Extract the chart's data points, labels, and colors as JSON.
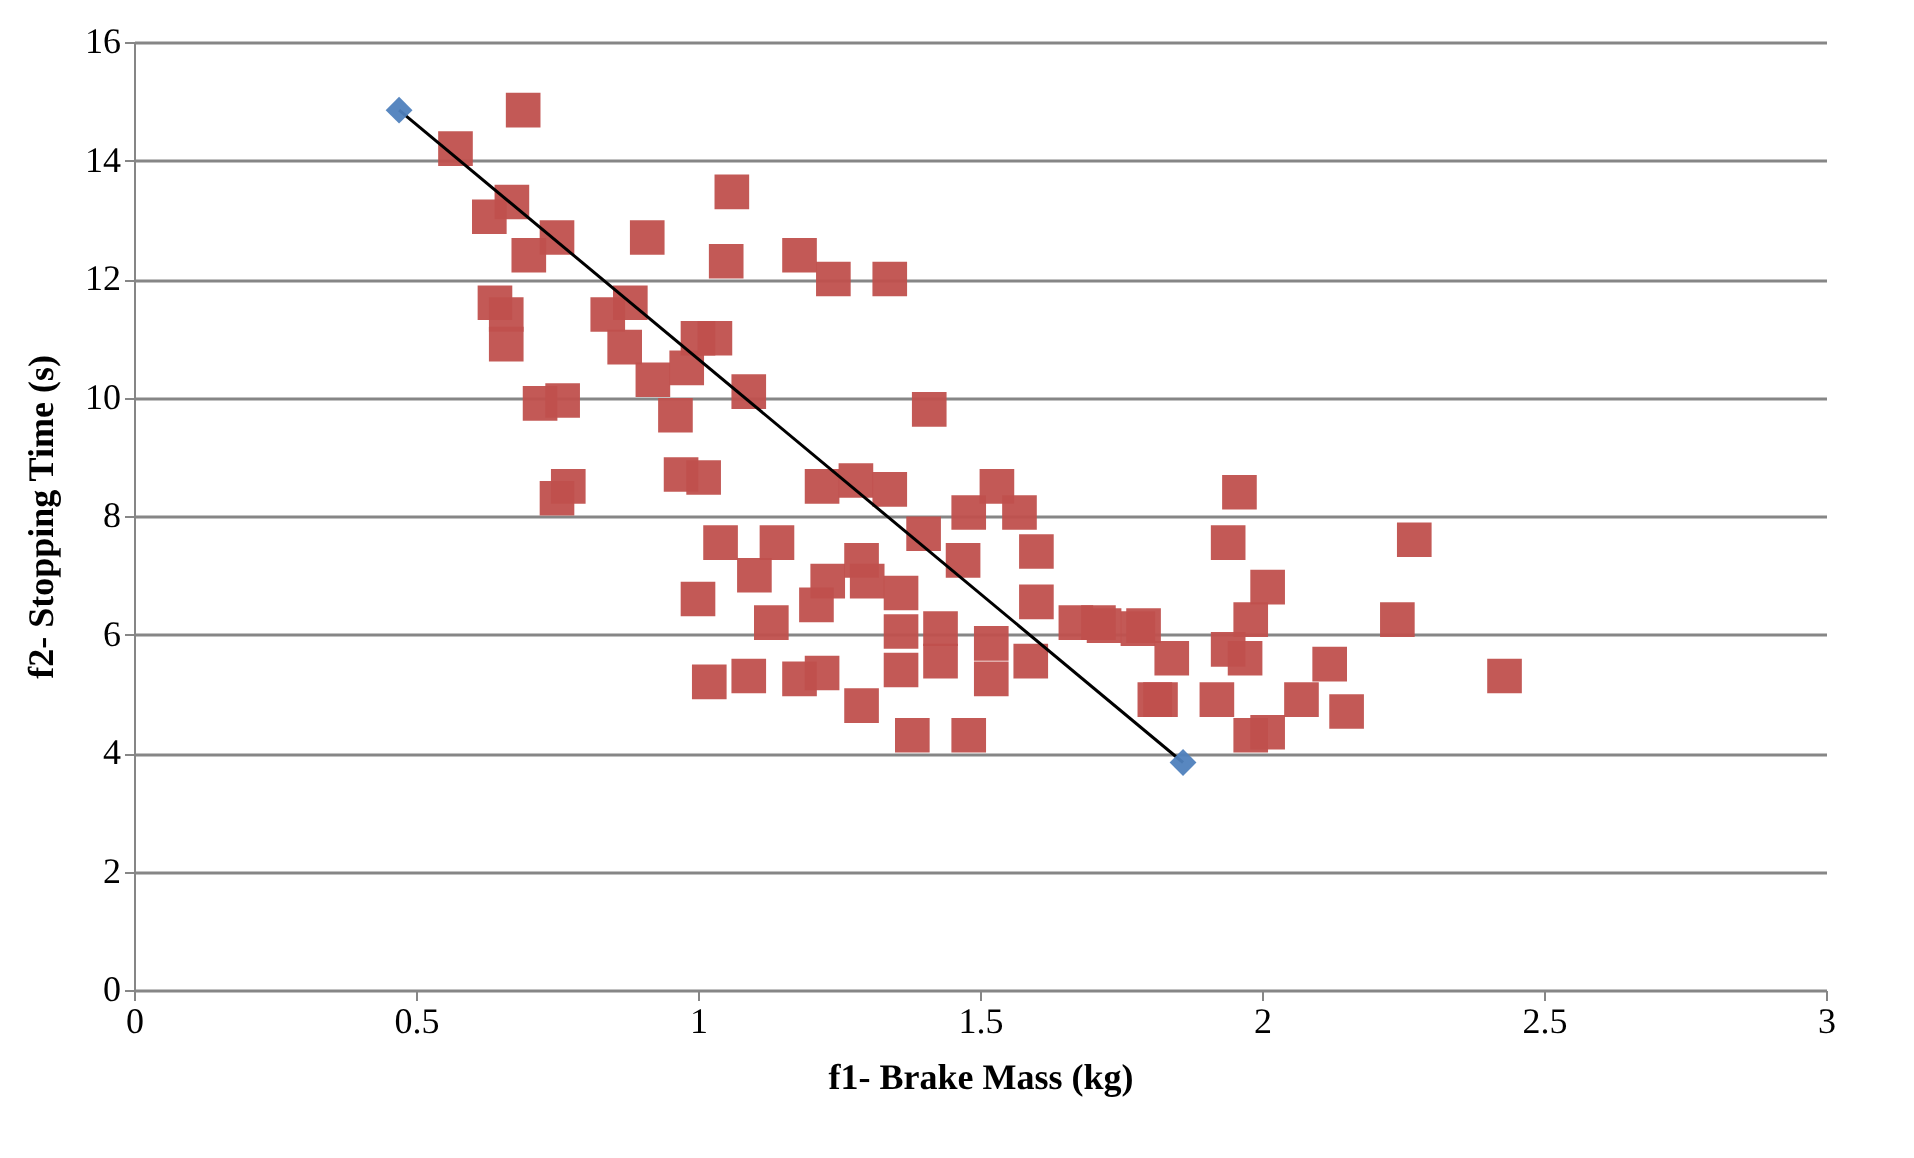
{
  "chart_data": {
    "type": "scatter",
    "xlabel": "f1- Brake Mass (kg)",
    "ylabel": "f2- Stopping Time (s)",
    "xlim": [
      0,
      3
    ],
    "xticks": [
      0,
      0.5,
      1,
      1.5,
      2,
      2.5,
      3
    ],
    "ylim": [
      0,
      16
    ],
    "yticks": [
      0,
      2,
      4,
      6,
      8,
      10,
      12,
      14,
      16
    ],
    "grid": "y",
    "legend": false,
    "series": [
      {
        "marker": "square",
        "color": "#c0504d",
        "x": [
          0.57,
          0.69,
          0.67,
          0.63,
          0.75,
          0.7,
          0.91,
          1.06,
          1.05,
          1.18,
          1.24,
          1.34,
          0.64,
          0.66,
          0.66,
          0.88,
          0.84,
          0.87,
          0.92,
          0.98,
          0.96,
          1.0,
          1.03,
          1.09,
          0.72,
          0.76,
          0.97,
          1.01,
          0.75,
          0.77,
          1.41,
          1.22,
          1.28,
          1.34,
          1.4,
          1.48,
          1.53,
          1.57,
          1.6,
          1.04,
          1.14,
          1.1,
          1.0,
          1.13,
          1.23,
          1.29,
          1.3,
          1.36,
          1.21,
          1.36,
          1.43,
          1.47,
          1.02,
          1.09,
          1.18,
          1.22,
          1.29,
          1.36,
          1.43,
          1.52,
          1.52,
          1.6,
          1.59,
          1.67,
          1.78,
          1.81,
          1.38,
          1.48,
          1.72,
          1.96,
          1.94,
          2.27,
          2.01,
          1.98,
          1.94,
          1.97,
          2.24,
          2.12,
          2.43,
          1.82,
          1.92,
          1.98,
          2.01,
          2.07,
          2.15,
          1.84,
          1.79,
          1.71
        ],
        "values": [
          14.2,
          14.85,
          13.3,
          13.05,
          12.7,
          12.4,
          12.7,
          13.47,
          12.3,
          12.4,
          12.0,
          12.0,
          11.6,
          11.4,
          10.9,
          11.6,
          11.4,
          10.85,
          10.3,
          10.5,
          9.7,
          11.0,
          11.0,
          10.1,
          9.9,
          9.95,
          8.7,
          8.65,
          8.3,
          8.5,
          9.8,
          8.5,
          8.6,
          8.45,
          7.7,
          8.06,
          8.5,
          8.06,
          7.4,
          7.55,
          7.55,
          7.0,
          6.6,
          6.2,
          6.9,
          7.25,
          6.9,
          6.7,
          6.5,
          6.05,
          6.1,
          7.25,
          5.2,
          5.3,
          5.25,
          5.35,
          4.8,
          5.4,
          5.55,
          5.85,
          5.25,
          6.55,
          5.55,
          6.2,
          6.1,
          4.9,
          4.3,
          4.3,
          6.15,
          8.4,
          7.55,
          7.6,
          6.8,
          6.25,
          5.75,
          5.6,
          6.25,
          5.5,
          5.3,
          4.9,
          4.9,
          4.3,
          4.35,
          4.9,
          4.7,
          5.6,
          6.15,
          6.2
        ]
      },
      {
        "type": "line",
        "marker": "none",
        "color": "#000000",
        "x": [
          0.47,
          1.86
        ],
        "values": [
          14.85,
          3.84
        ]
      },
      {
        "type": "scatter",
        "marker": "diamond",
        "color": "#4f81bd",
        "x": [
          0.47,
          1.86
        ],
        "values": [
          14.85,
          3.84
        ]
      }
    ]
  }
}
